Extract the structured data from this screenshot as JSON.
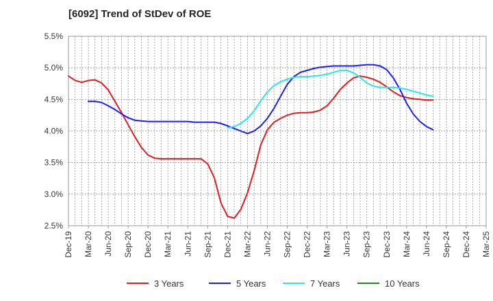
{
  "chart_data": {
    "type": "line",
    "title": "[6092]  Trend of StDev of ROE",
    "xlabel": "",
    "ylabel": "",
    "ylim": [
      2.5,
      5.5
    ],
    "yticks": [
      "2.5%",
      "3.0%",
      "3.5%",
      "4.0%",
      "4.5%",
      "5.0%",
      "5.5%"
    ],
    "xticks": [
      "Dec-19",
      "Mar-20",
      "Jun-20",
      "Sep-20",
      "Dec-20",
      "Mar-21",
      "Jun-21",
      "Sep-21",
      "Dec-21",
      "Mar-22",
      "Jun-22",
      "Sep-22",
      "Dec-22",
      "Mar-23",
      "Jun-23",
      "Sep-23",
      "Dec-23",
      "Mar-24",
      "Jun-24",
      "Sep-24",
      "Dec-24",
      "Mar-25"
    ],
    "grid": true,
    "legend_position": "bottom",
    "series": [
      {
        "name": "3 Years",
        "color": "#e31a1c",
        "values": [
          4.87,
          4.8,
          4.77,
          4.8,
          4.81,
          4.76,
          4.65,
          4.47,
          4.29,
          4.1,
          3.91,
          3.74,
          3.62,
          3.57,
          3.56,
          3.56,
          3.56,
          3.56,
          3.56,
          3.56,
          3.56,
          3.48,
          3.26,
          2.86,
          2.65,
          2.62,
          2.76,
          3.02,
          3.37,
          3.78,
          4.02,
          4.14,
          4.2,
          4.25,
          4.28,
          4.29,
          4.29,
          4.3,
          4.33,
          4.4,
          4.52,
          4.66,
          4.76,
          4.84,
          4.87,
          4.85,
          4.82,
          4.77,
          4.7,
          4.62,
          4.56,
          4.53,
          4.51,
          4.5,
          4.49,
          4.49
        ]
      },
      {
        "name": "5 Years",
        "color": "#1a1aff",
        "values": [
          null,
          null,
          null,
          4.47,
          4.47,
          4.45,
          4.4,
          4.34,
          4.27,
          4.21,
          4.17,
          4.16,
          4.15,
          4.15,
          4.15,
          4.15,
          4.15,
          4.15,
          4.15,
          4.14,
          4.14,
          4.14,
          4.14,
          4.12,
          4.08,
          4.04,
          4.0,
          3.96,
          4.0,
          4.08,
          4.2,
          4.36,
          4.55,
          4.74,
          4.86,
          4.93,
          4.96,
          4.99,
          5.01,
          5.02,
          5.03,
          5.03,
          5.03,
          5.03,
          5.04,
          5.05,
          5.05,
          5.03,
          4.97,
          4.84,
          4.66,
          4.44,
          4.27,
          4.15,
          4.07,
          4.02
        ]
      },
      {
        "name": "7 Years",
        "color": "#22e8e8",
        "values": [
          null,
          null,
          null,
          null,
          null,
          null,
          null,
          null,
          null,
          null,
          null,
          null,
          null,
          null,
          null,
          null,
          null,
          null,
          null,
          null,
          null,
          null,
          null,
          null,
          4.05,
          4.07,
          4.12,
          4.2,
          4.32,
          4.48,
          4.62,
          4.72,
          4.78,
          4.82,
          4.85,
          4.86,
          4.86,
          4.87,
          4.88,
          4.9,
          4.93,
          4.96,
          4.96,
          4.92,
          4.85,
          4.76,
          4.71,
          4.69,
          4.69,
          4.69,
          4.68,
          4.66,
          4.63,
          4.6,
          4.57,
          4.55
        ]
      },
      {
        "name": "10 Years",
        "color": "#1a8c1a",
        "values": []
      }
    ]
  }
}
